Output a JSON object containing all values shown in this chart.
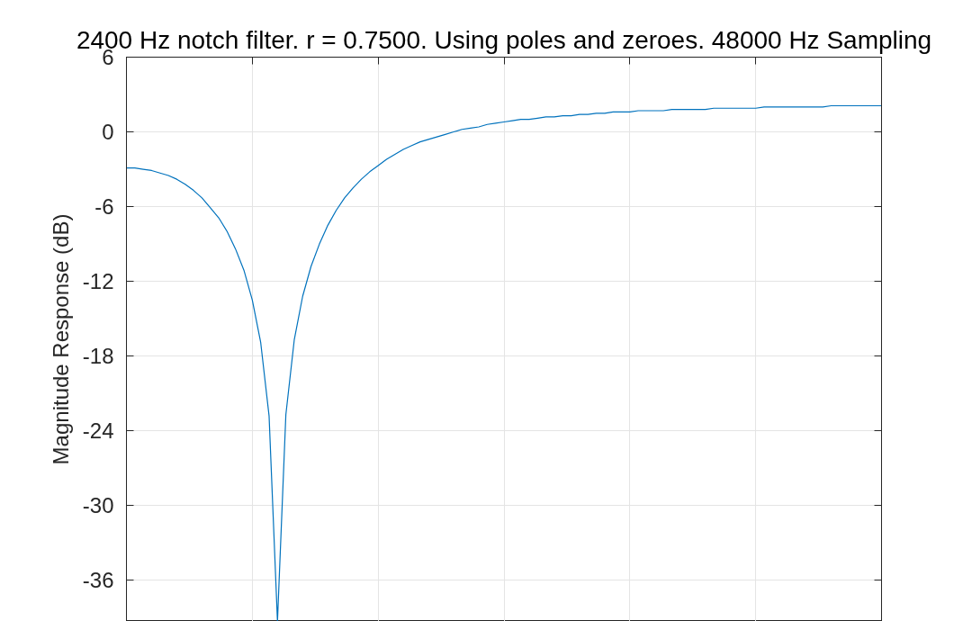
{
  "chart_data": {
    "type": "line",
    "title": "2400 Hz notch filter. r = 0.7500. Using poles and zeroes. 48000 Hz Sampling",
    "ylabel": "Magnitude Response (dB)",
    "categories": [
      null,
      null,
      null,
      null,
      null,
      null,
      null,
      null,
      null,
      null,
      null,
      null,
      null,
      null,
      null,
      null,
      null,
      null,
      null,
      null,
      null,
      null,
      null,
      null,
      null,
      null,
      null,
      null,
      null,
      null,
      null,
      null,
      null,
      null,
      null,
      null,
      null,
      null,
      null,
      null,
      null,
      null,
      null,
      null,
      null,
      null,
      null,
      null,
      null,
      null,
      null,
      null,
      null,
      null,
      null,
      null,
      null,
      null,
      null,
      null,
      null,
      null,
      null,
      null,
      null,
      null,
      null,
      null,
      null,
      null,
      null,
      null,
      null,
      null,
      null,
      null,
      null,
      null,
      null,
      null,
      null,
      null,
      null,
      null,
      null,
      null,
      null,
      null,
      null,
      null,
      null
    ],
    "series": [
      {
        "color": "#0072bd",
        "values": [
          -2.9,
          -2.9,
          -3.0,
          -3.1,
          -3.3,
          -3.5,
          -3.8,
          -4.2,
          -4.7,
          -5.3,
          -6.1,
          -6.9,
          -8.0,
          -9.4,
          -11.1,
          -13.5,
          -16.9,
          -22.8,
          -39.3,
          -22.7,
          -16.7,
          -13.2,
          -10.8,
          -9.0,
          -7.5,
          -6.3,
          -5.3,
          -4.5,
          -3.8,
          -3.2,
          -2.7,
          -2.2,
          -1.8,
          -1.4,
          -1.1,
          -0.8,
          -0.6,
          -0.4,
          -0.2,
          0.0,
          0.2,
          0.3,
          0.4,
          0.6,
          0.7,
          0.8,
          0.9,
          1.0,
          1.0,
          1.1,
          1.2,
          1.2,
          1.3,
          1.3,
          1.4,
          1.4,
          1.5,
          1.5,
          1.6,
          1.6,
          1.6,
          1.7,
          1.7,
          1.7,
          1.7,
          1.8,
          1.8,
          1.8,
          1.8,
          1.8,
          1.9,
          1.9,
          1.9,
          1.9,
          1.9,
          1.9,
          2.0,
          2.0,
          2.0,
          2.0,
          2.0,
          2.0,
          2.0,
          2.0,
          2.1,
          2.1,
          2.1,
          2.1,
          2.1,
          2.1,
          2.1
        ]
      }
    ],
    "ylim": [
      -39.3,
      6
    ],
    "yticks": [
      -36,
      -30,
      -24,
      -18,
      -12,
      -6,
      0,
      6
    ],
    "grid": true,
    "tick_labels": "y"
  }
}
